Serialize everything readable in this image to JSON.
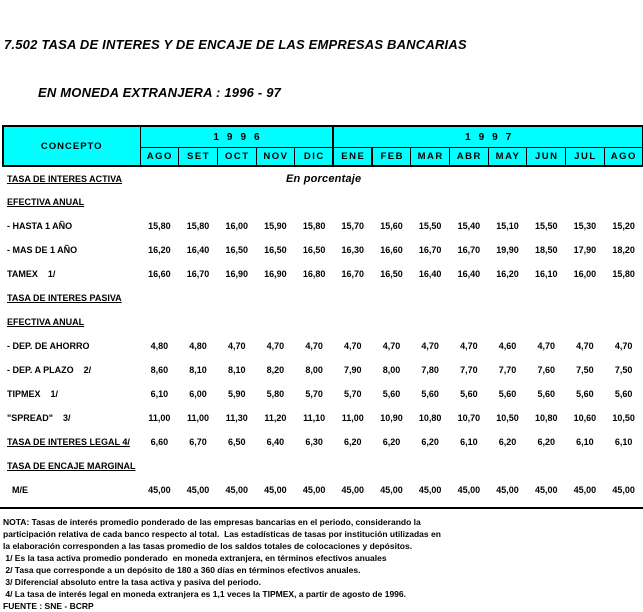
{
  "title": {
    "line1": "7.502 TASA DE INTERES Y DE ENCAJE DE LAS EMPRESAS BANCARIAS",
    "line2": "EN MONEDA EXTRANJERA : 1996 - 97"
  },
  "table": {
    "concept_header": "CONCEPTO",
    "years": [
      {
        "label": "1996",
        "span": 5
      },
      {
        "label": "1997",
        "span": 8
      }
    ],
    "months": [
      "AGO",
      "SET",
      "OCT",
      "NOV",
      "DIC",
      "ENE",
      "FEB",
      "MAR",
      "ABR",
      "MAY",
      "JUN",
      "JUL",
      "AGO"
    ],
    "unit_label": "En porcentaje",
    "header_bg_color": "#00FFFF",
    "rows": [
      {
        "label": "TASA DE INTERES ACTIVA",
        "type": "section",
        "banner": true
      },
      {
        "label": "EFECTIVA ANUAL",
        "type": "section"
      },
      {
        "label": "- HASTA 1 AÑO",
        "type": "data",
        "values": [
          "15,80",
          "15,80",
          "16,00",
          "15,90",
          "15,80",
          "15,70",
          "15,60",
          "15,50",
          "15,40",
          "15,10",
          "15,50",
          "15,30",
          "15,20"
        ]
      },
      {
        "label": "- MAS DE 1 AÑO",
        "type": "data",
        "values": [
          "16,20",
          "16,40",
          "16,50",
          "16,50",
          "16,50",
          "16,30",
          "16,60",
          "16,70",
          "16,70",
          "19,90",
          "18,50",
          "17,90",
          "18,20"
        ]
      },
      {
        "label": "TAMEX    1/",
        "type": "data",
        "values": [
          "16,60",
          "16,70",
          "16,90",
          "16,90",
          "16,80",
          "16,70",
          "16,50",
          "16,40",
          "16,40",
          "16,20",
          "16,10",
          "16,00",
          "15,80"
        ]
      },
      {
        "label": "TASA DE INTERES PASIVA",
        "type": "section"
      },
      {
        "label": "EFECTIVA ANUAL",
        "type": "section"
      },
      {
        "label": "- DEP. DE AHORRO",
        "type": "data",
        "values": [
          "4,80",
          "4,80",
          "4,70",
          "4,70",
          "4,70",
          "4,70",
          "4,70",
          "4,70",
          "4,70",
          "4,60",
          "4,70",
          "4,70",
          "4,70"
        ]
      },
      {
        "label": "- DEP. A PLAZO    2/",
        "type": "data",
        "values": [
          "8,60",
          "8,10",
          "8,10",
          "8,20",
          "8,00",
          "7,90",
          "8,00",
          "7,80",
          "7,70",
          "7,70",
          "7,60",
          "7,50",
          "7,50"
        ]
      },
      {
        "label": "TIPMEX    1/",
        "type": "data",
        "values": [
          "6,10",
          "6,00",
          "5,90",
          "5,80",
          "5,70",
          "5,70",
          "5,60",
          "5,60",
          "5,60",
          "5,60",
          "5,60",
          "5,60",
          "5,60"
        ]
      },
      {
        "label": "\"SPREAD\"    3/",
        "type": "data",
        "values": [
          "11,00",
          "11,00",
          "11,30",
          "11,20",
          "11,10",
          "11,00",
          "10,90",
          "10,80",
          "10,70",
          "10,50",
          "10,80",
          "10,60",
          "10,50"
        ]
      },
      {
        "label": "TASA DE INTERES LEGAL 4/",
        "type": "section-data",
        "values": [
          "6,60",
          "6,70",
          "6,50",
          "6,40",
          "6,30",
          "6,20",
          "6,20",
          "6,20",
          "6,10",
          "6,20",
          "6,20",
          "6,10",
          "6,10"
        ]
      },
      {
        "label": "TASA DE ENCAJE MARGINAL",
        "type": "section"
      },
      {
        "label": "M/E",
        "type": "data",
        "indent": true,
        "values": [
          "45,00",
          "45,00",
          "45,00",
          "45,00",
          "45,00",
          "45,00",
          "45,00",
          "45,00",
          "45,00",
          "45,00",
          "45,00",
          "45,00",
          "45,00"
        ]
      }
    ]
  },
  "footer": {
    "notes": [
      "NOTA: Tasas de interés promedio ponderado de las empresas bancarias en el periodo, considerando la",
      "participación relativa de cada banco respecto al total.  Las estadísticas de tasas por institución utilizadas en",
      "la elaboración corresponden a las tasas promedio de los saldos totales de colocaciones y depósitos.",
      " 1/ Es la tasa activa promedio ponderado  en moneda extranjera, en términos efectivos anuales",
      " 2/ Tasa que corresponde a un depósito de 180 a 360 días en términos efectivos anuales.",
      " 3/ Diferencial absoluto entre la tasa activa y pasiva del periodo.",
      " 4/ La tasa de interés legal en moneda extranjera es 1,1 veces la TIPMEX, a partir de agosto de 1996."
    ],
    "source": "FUENTE : SNE - BCRP"
  }
}
